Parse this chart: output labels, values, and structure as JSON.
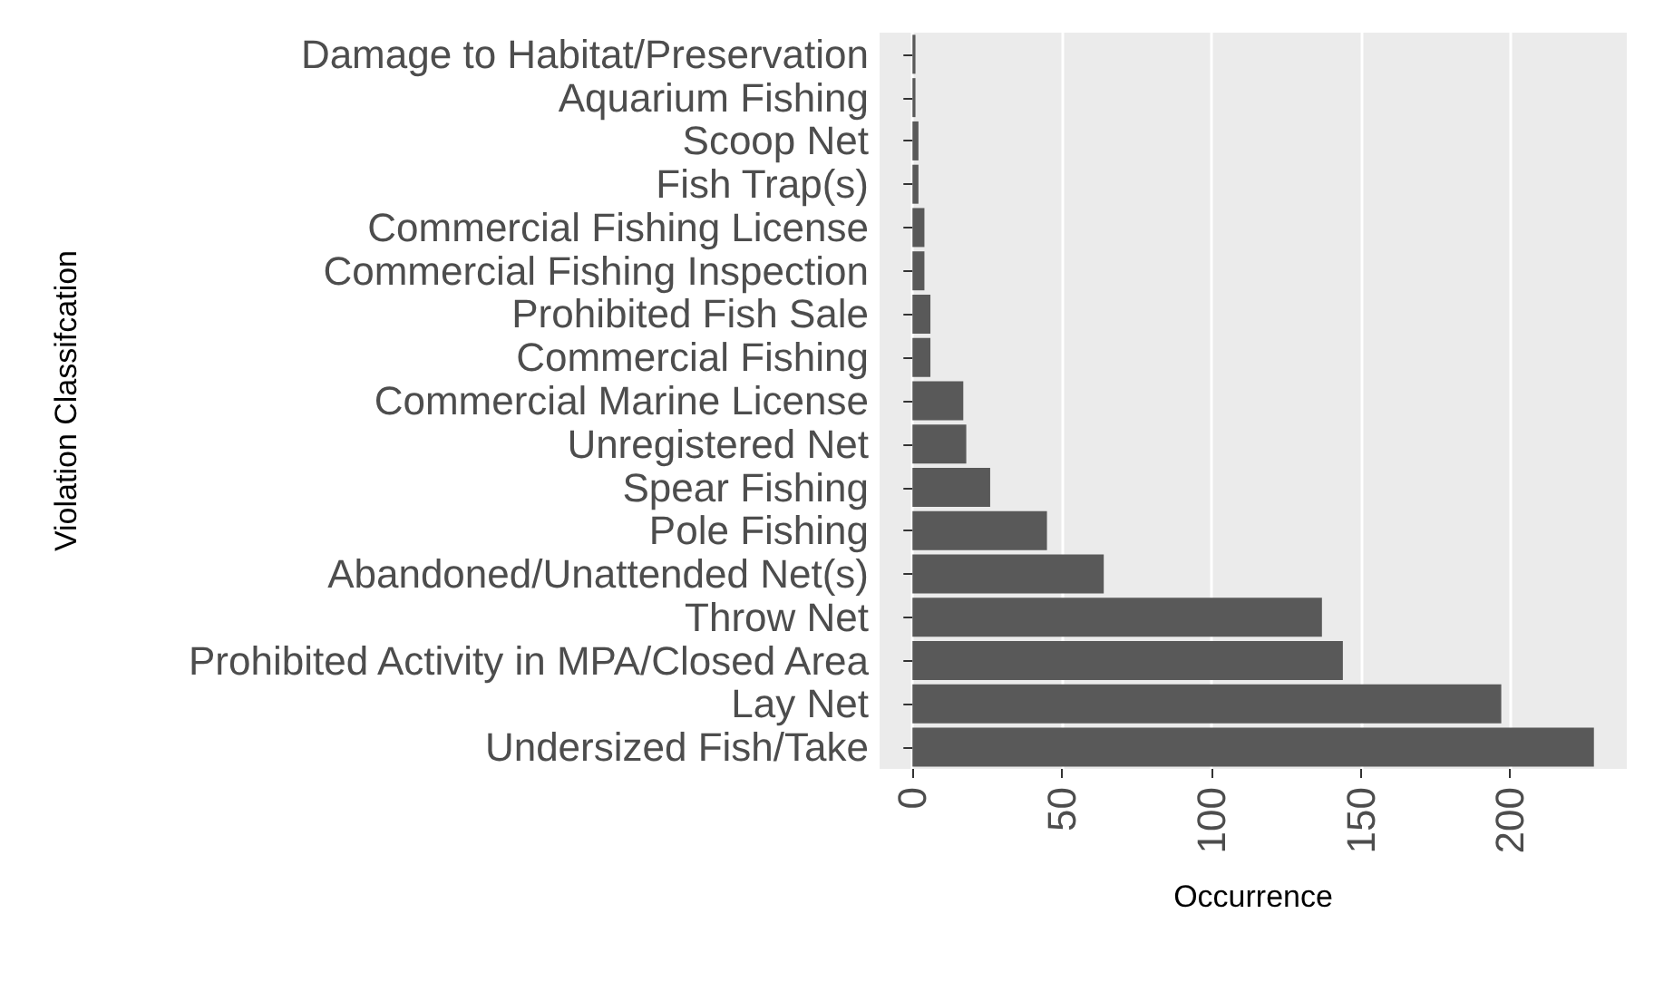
{
  "chart_data": {
    "type": "bar",
    "orientation": "horizontal",
    "xlabel": "Occurrence",
    "ylabel": "Violation Classifcation",
    "categories": [
      "Damage to Habitat/Preservation",
      "Aquarium Fishing",
      "Scoop Net",
      "Fish Trap(s)",
      "Commercial Fishing License",
      "Commercial Fishing Inspection",
      "Prohibited Fish Sale",
      "Commercial Fishing",
      "Commercial Marine License",
      "Unregistered Net",
      "Spear Fishing",
      "Pole Fishing",
      "Abandoned/Unattended Net(s)",
      "Throw Net",
      "Prohibited Activity in MPA/Closed Area",
      "Lay Net",
      "Undersized Fish/Take"
    ],
    "values": [
      1,
      1,
      2,
      2,
      4,
      4,
      6,
      6,
      17,
      18,
      26,
      45,
      64,
      137,
      144,
      197,
      228
    ],
    "color": "#595959",
    "xlim": [
      -11,
      239
    ],
    "xticks": [
      0,
      50,
      100,
      150,
      200
    ],
    "grid": "x"
  }
}
